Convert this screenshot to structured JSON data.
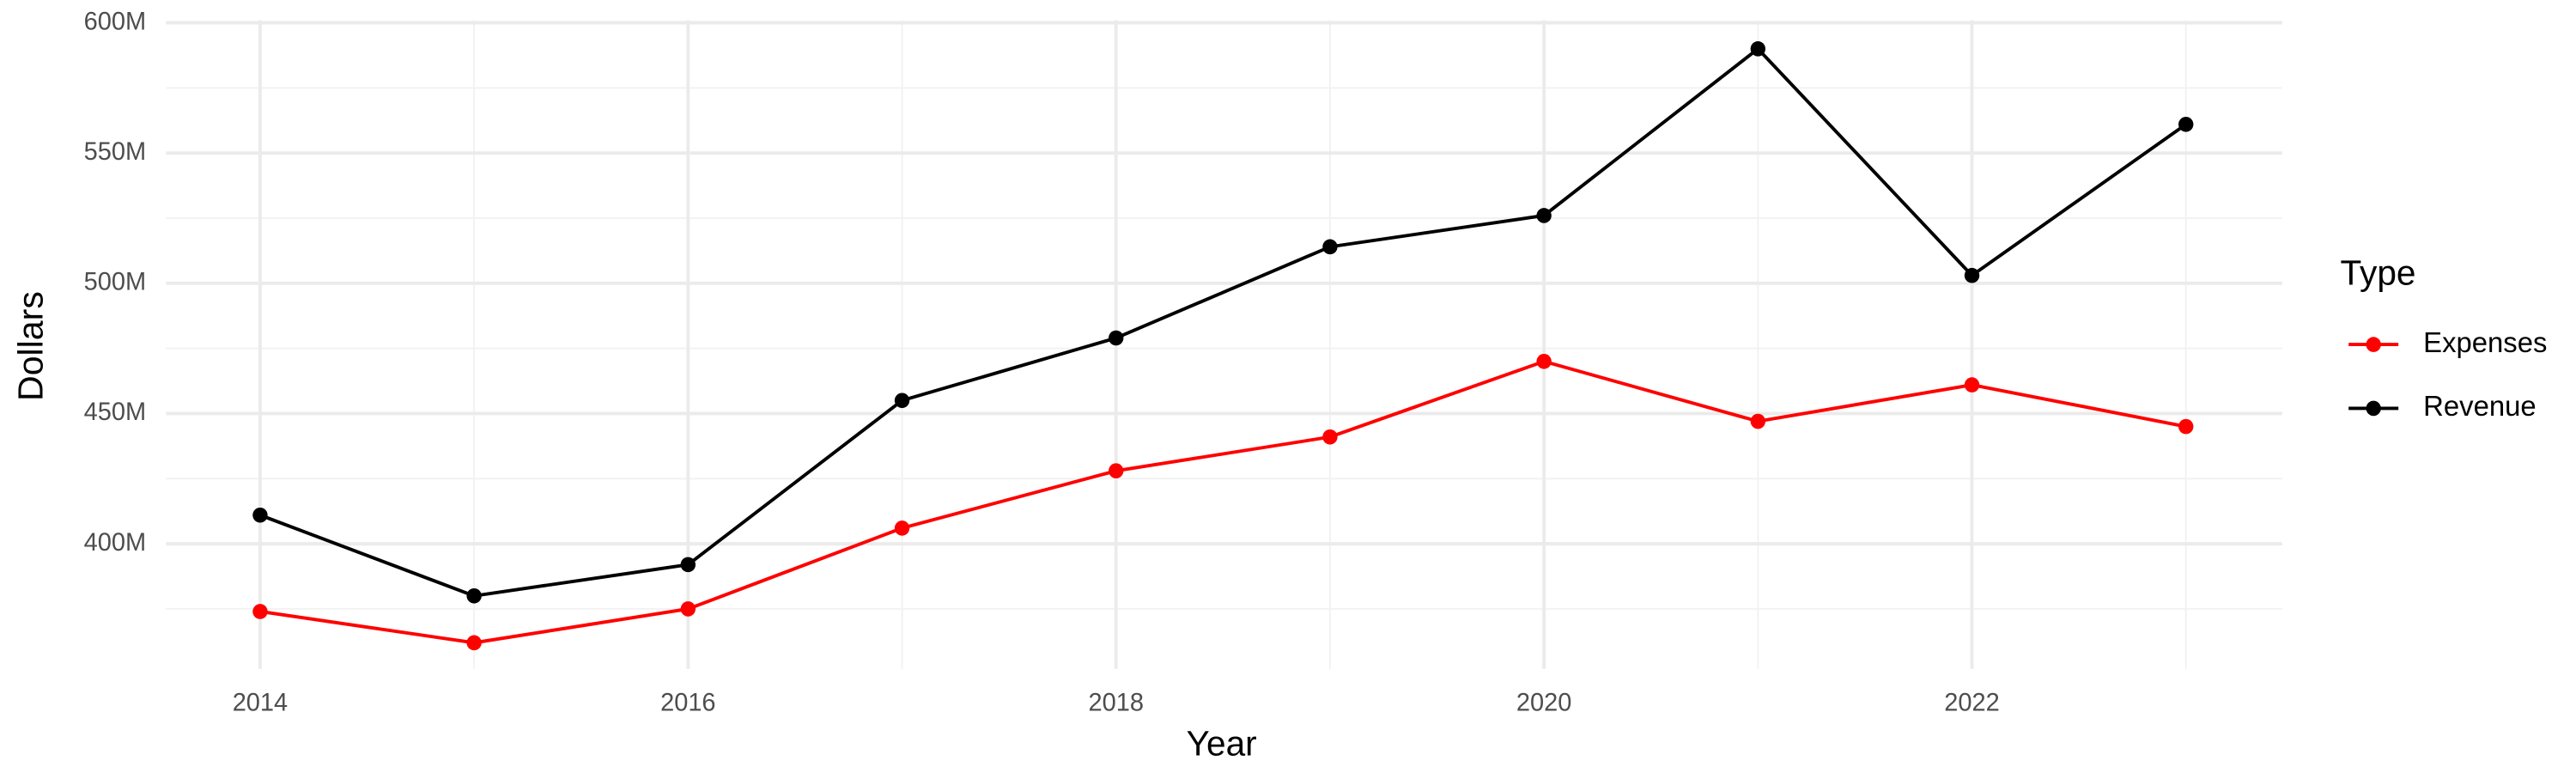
{
  "chart_data": {
    "type": "line",
    "x_label": "Year",
    "y_label": "Dollars",
    "legend_title": "Type",
    "x": [
      2014,
      2015,
      2016,
      2017,
      2018,
      2019,
      2020,
      2021,
      2022,
      2023
    ],
    "series": [
      {
        "name": "Expenses",
        "color": "#ff0000",
        "values": [
          374000000,
          362000000,
          375000000,
          406000000,
          428000000,
          441000000,
          470000000,
          447000000,
          461000000,
          445000000
        ]
      },
      {
        "name": "Revenue",
        "color": "#000000",
        "values": [
          411000000,
          380000000,
          392000000,
          455000000,
          479000000,
          514000000,
          526000000,
          590000000,
          503000000,
          561000000
        ]
      }
    ],
    "xlim": [
      2013.56,
      2023.45
    ],
    "xticks": [
      2014,
      2016,
      2018,
      2020,
      2022
    ],
    "ylim": [
      352000000,
      601000000
    ],
    "yticks": [
      {
        "value": 400000000,
        "label": "400M"
      },
      {
        "value": 450000000,
        "label": "450M"
      },
      {
        "value": 500000000,
        "label": "500M"
      },
      {
        "value": 550000000,
        "label": "550M"
      },
      {
        "value": 600000000,
        "label": "600M"
      }
    ],
    "grid": true,
    "legend": "right"
  }
}
